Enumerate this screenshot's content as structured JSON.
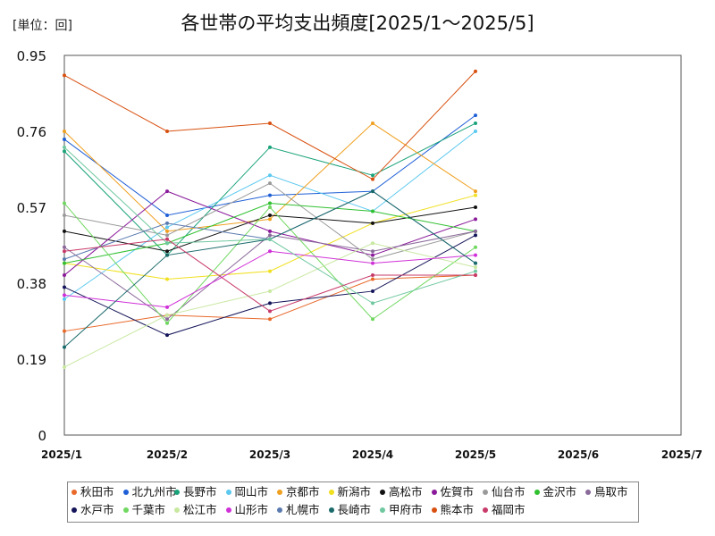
{
  "unit_label": "[単位：回]",
  "chart_data": {
    "type": "line",
    "title": "各世帯の平均支出頻度[2025/1～2025/5]",
    "x_ticks": [
      "2025/1",
      "2025/2",
      "2025/3",
      "2025/4",
      "2025/5",
      "2025/6",
      "2025/7"
    ],
    "y_ticks": [
      "0",
      "0.19",
      "0.38",
      "0.57",
      "0.76",
      "0.95"
    ],
    "ylim": [
      0,
      0.95
    ],
    "grid": true,
    "legend_position": "bottom",
    "x": [
      "2025/1",
      "2025/2",
      "2025/3",
      "2025/4",
      "2025/5"
    ],
    "series": [
      {
        "name": "秋田市",
        "color": "#e8692a",
        "values": [
          0.26,
          0.3,
          0.29,
          0.39,
          0.4
        ]
      },
      {
        "name": "北九州市",
        "color": "#1f5fd6",
        "values": [
          0.74,
          0.55,
          0.6,
          0.61,
          0.8
        ]
      },
      {
        "name": "長野市",
        "color": "#1aa37a",
        "values": [
          0.71,
          0.45,
          0.72,
          0.65,
          0.78
        ]
      },
      {
        "name": "岡山市",
        "color": "#5bc8f0",
        "values": [
          0.34,
          0.52,
          0.65,
          0.56,
          0.76
        ]
      },
      {
        "name": "京都市",
        "color": "#f0a020",
        "values": [
          0.76,
          0.51,
          0.54,
          0.78,
          0.61
        ]
      },
      {
        "name": "新潟市",
        "color": "#f0e020",
        "values": [
          0.43,
          0.39,
          0.41,
          0.53,
          0.6
        ]
      },
      {
        "name": "高松市",
        "color": "#111111",
        "values": [
          0.51,
          0.46,
          0.55,
          0.53,
          0.57
        ]
      },
      {
        "name": "佐賀市",
        "color": "#8a1a9a",
        "values": [
          0.4,
          0.61,
          0.51,
          0.45,
          0.54
        ]
      },
      {
        "name": "仙台市",
        "color": "#9a9a9a",
        "values": [
          0.55,
          0.5,
          0.63,
          0.44,
          0.51
        ]
      },
      {
        "name": "金沢市",
        "color": "#30c030",
        "values": [
          0.43,
          0.48,
          0.58,
          0.56,
          0.51
        ]
      },
      {
        "name": "鳥取市",
        "color": "#8a6a9a",
        "values": [
          0.47,
          0.29,
          0.5,
          0.46,
          0.51
        ]
      },
      {
        "name": "水戸市",
        "color": "#14145a",
        "values": [
          0.37,
          0.25,
          0.33,
          0.36,
          0.5
        ]
      },
      {
        "name": "千葉市",
        "color": "#70d860",
        "values": [
          0.58,
          0.28,
          0.57,
          0.29,
          0.47
        ]
      },
      {
        "name": "松江市",
        "color": "#c8e8a0",
        "values": [
          0.17,
          0.3,
          0.36,
          0.48,
          0.42
        ]
      },
      {
        "name": "山形市",
        "color": "#d030d8",
        "values": [
          0.35,
          0.32,
          0.46,
          0.43,
          0.45
        ]
      },
      {
        "name": "札幌市",
        "color": "#5a7ab0",
        "values": [
          0.44,
          0.53,
          0.49,
          0.61,
          0.43
        ]
      },
      {
        "name": "長崎市",
        "color": "#1a6a6a",
        "values": [
          0.22,
          0.45,
          0.49,
          0.61,
          0.43
        ]
      },
      {
        "name": "甲府市",
        "color": "#70c8a0",
        "values": [
          0.72,
          0.48,
          0.49,
          0.33,
          0.41
        ]
      },
      {
        "name": "熊本市",
        "color": "#d85010",
        "values": [
          0.9,
          0.76,
          0.78,
          0.64,
          0.91
        ]
      },
      {
        "name": "福岡市",
        "color": "#c83a6a",
        "values": [
          0.46,
          0.49,
          0.31,
          0.4,
          0.4
        ]
      }
    ]
  }
}
